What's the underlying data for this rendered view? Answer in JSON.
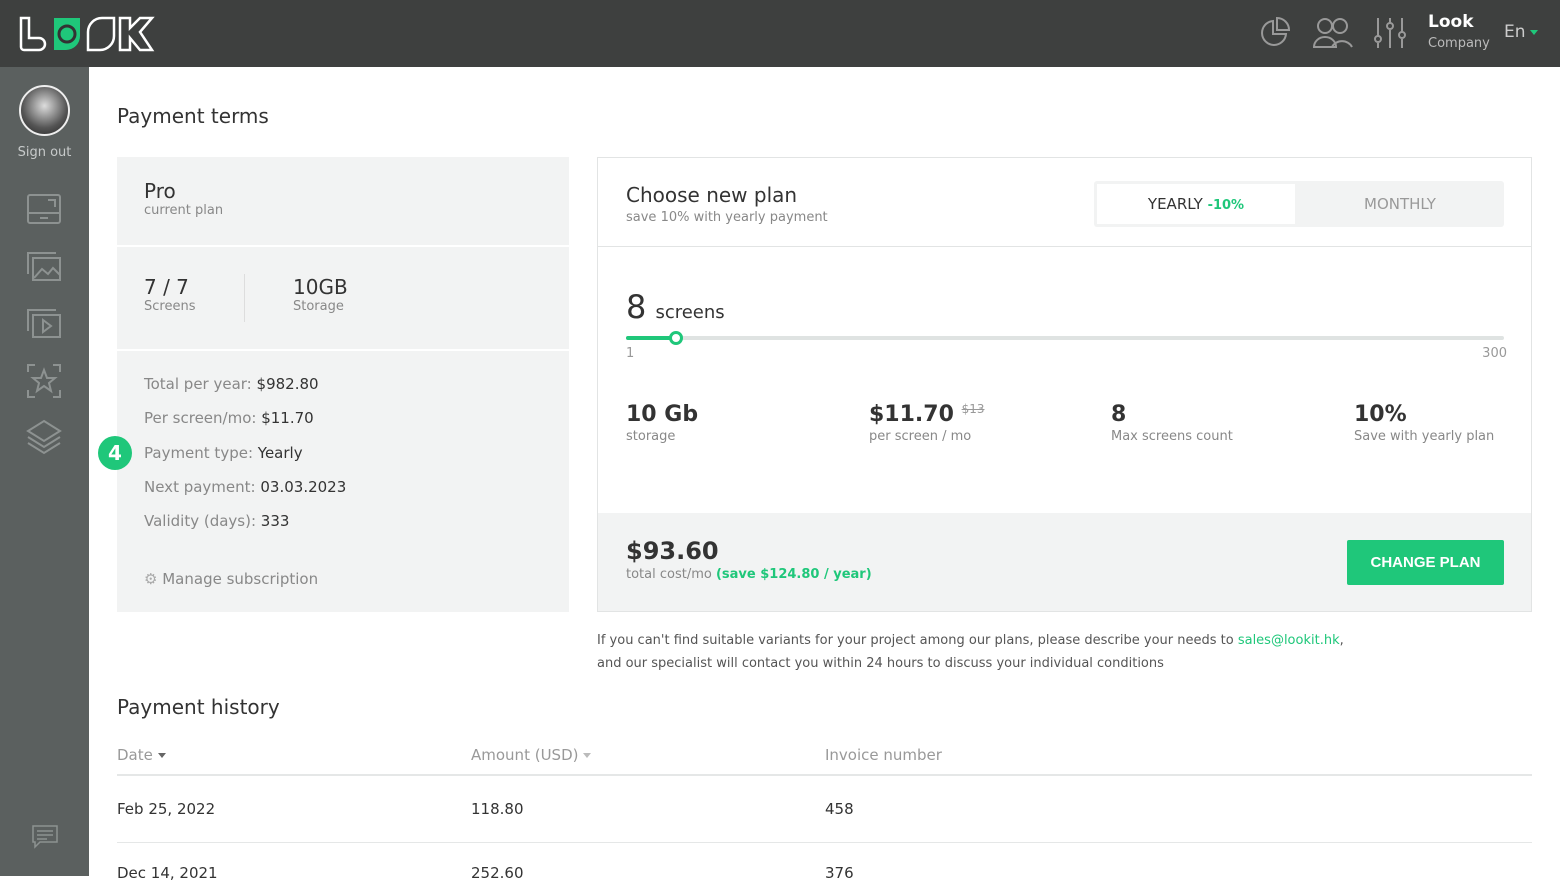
{
  "app": {
    "logo": "LOOK",
    "company_name": "Look",
    "company_sub": "Company",
    "language": "En",
    "accent": "#1fc77a"
  },
  "topbar_icons": [
    "pie-chart-icon",
    "users-icon",
    "sliders-icon"
  ],
  "sidebar": {
    "sign_out": "Sign out",
    "items": [
      "screens-icon",
      "images-icon",
      "videos-icon",
      "favorites-icon",
      "layers-icon"
    ],
    "bottom": "chat-icon"
  },
  "payment_terms": {
    "title": "Payment terms",
    "current": {
      "plan": "Pro",
      "plan_label": "current plan",
      "screens": "7 / 7",
      "screens_label": "Screens",
      "storage": "10GB",
      "storage_label": "Storage"
    },
    "details": [
      {
        "label": "Total per year:",
        "value": "$982.80"
      },
      {
        "label": "Per screen/mo:",
        "value": "$11.70"
      },
      {
        "label": "Payment type:",
        "value": "Yearly"
      },
      {
        "label": "Next payment:",
        "value": "03.03.2023"
      },
      {
        "label": "Validity (days):",
        "value": "333"
      }
    ],
    "step_badge": "4",
    "manage": "Manage subscription"
  },
  "new_plan": {
    "title": "Choose new plan",
    "subtitle": "save 10% with yearly payment",
    "yearly": "YEARLY",
    "yearly_discount": "-10%",
    "monthly": "MONTHLY",
    "selected": "yearly",
    "screens_value": "8",
    "screens_label": "screens",
    "slider_min": "1",
    "slider_max": "300",
    "slider_value": 8,
    "stats": [
      {
        "value": "10 Gb",
        "old": "",
        "label": "storage"
      },
      {
        "value": "$11.70",
        "old": "$13",
        "label": "per screen / mo"
      },
      {
        "value": "8",
        "old": "",
        "label": "Max screens count"
      },
      {
        "value": "10%",
        "old": "",
        "label": "Save with yearly plan"
      }
    ],
    "total": "$93.60",
    "total_label": "total cost/mo",
    "total_save": "(save $124.80 / year)",
    "change_button": "CHANGE PLAN"
  },
  "note": {
    "line1": "If you can't find suitable variants for your project among our plans, please describe your needs to ",
    "email": "sales@lookit.hk",
    "line1_end": ",",
    "line2": "and our specialist will contact you within 24 hours to discuss your individual conditions"
  },
  "history": {
    "title": "Payment history",
    "columns": [
      "Date",
      "Amount (USD)",
      "Invoice number"
    ],
    "rows": [
      [
        "Feb 25, 2022",
        "118.80",
        "458"
      ],
      [
        "Dec 14, 2021",
        "252.60",
        "376"
      ]
    ]
  }
}
